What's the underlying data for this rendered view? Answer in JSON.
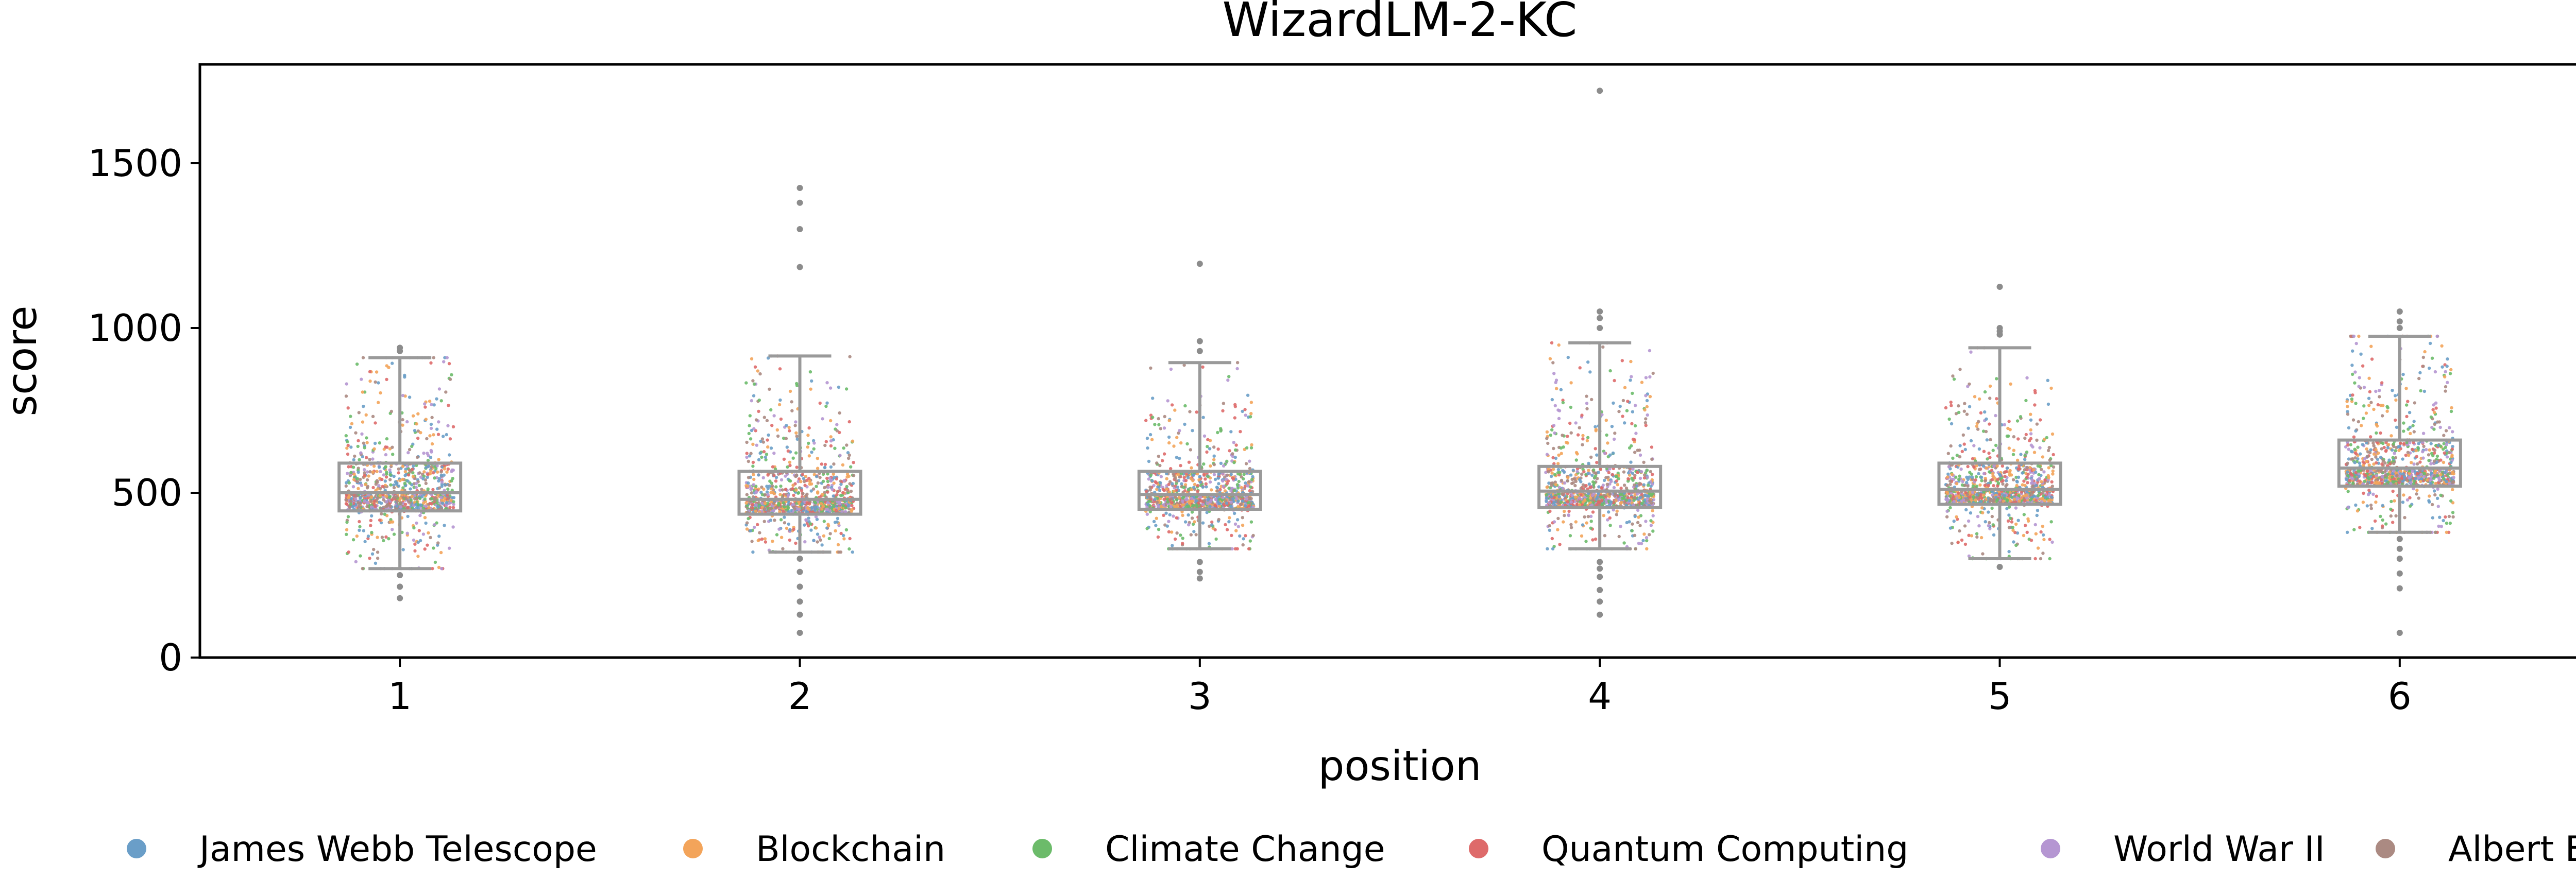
{
  "chart_data": {
    "type": "box",
    "title": "WizardLM-2-KC",
    "xlabel": "position",
    "ylabel": "score",
    "categories": [
      "1",
      "2",
      "3",
      "4",
      "5",
      "6"
    ],
    "ylim": [
      0,
      1800
    ],
    "yticks": [
      0,
      500,
      1000,
      1500
    ],
    "grid": false,
    "legend": {
      "placement": "bottom",
      "entries": [
        {
          "label": "James Webb Telescope",
          "color": "#6a9ec8"
        },
        {
          "label": "Blockchain",
          "color": "#f3a45a"
        },
        {
          "label": "Climate Change",
          "color": "#6cbb6a"
        },
        {
          "label": "Quantum Computing",
          "color": "#de6a6a"
        },
        {
          "label": "World War II",
          "color": "#b596d2"
        },
        {
          "label": "Albert Einstein",
          "color": "#ab8a82"
        }
      ]
    },
    "boxes": [
      {
        "position": "1",
        "whisker_low": 270,
        "q1": 445,
        "median": 500,
        "q3": 590,
        "whisker_high": 910,
        "outliers": [
          250,
          215,
          180,
          930,
          940
        ]
      },
      {
        "position": "2",
        "whisker_low": 320,
        "q1": 435,
        "median": 480,
        "q3": 565,
        "whisker_high": 915,
        "outliers": [
          300,
          260,
          215,
          170,
          130,
          75,
          1425,
          1380,
          1300,
          1185
        ]
      },
      {
        "position": "3",
        "whisker_low": 330,
        "q1": 450,
        "median": 495,
        "q3": 565,
        "whisker_high": 895,
        "outliers": [
          290,
          260,
          240,
          930,
          960,
          1195
        ]
      },
      {
        "position": "4",
        "whisker_low": 330,
        "q1": 455,
        "median": 505,
        "q3": 580,
        "whisker_high": 955,
        "outliers": [
          290,
          270,
          245,
          205,
          170,
          130,
          1000,
          1030,
          1050,
          1720
        ]
      },
      {
        "position": "5",
        "whisker_low": 300,
        "q1": 465,
        "median": 510,
        "q3": 590,
        "whisker_high": 940,
        "outliers": [
          275,
          1125,
          1000,
          990,
          980
        ]
      },
      {
        "position": "6",
        "whisker_low": 380,
        "q1": 520,
        "median": 575,
        "q3": 660,
        "whisker_high": 975,
        "outliers": [
          360,
          330,
          300,
          255,
          210,
          75,
          1000,
          1020,
          1050
        ]
      }
    ],
    "points_per_category": 1000
  }
}
